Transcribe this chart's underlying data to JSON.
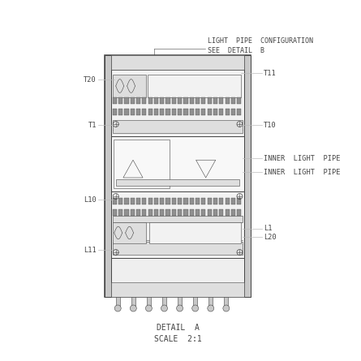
{
  "bg_color": "#ffffff",
  "line_color": "#666666",
  "dark_color": "#444444",
  "med_gray": "#888888",
  "light_gray": "#bbbbbb",
  "fill_light": "#f2f2f2",
  "fill_med": "#dedede",
  "fill_dark": "#c8c8c8",
  "fill_pin": "#909090",
  "title_top": "LIGHT  PIPE  CONFIGURATION",
  "title_top2": "SEE  DETAIL  B",
  "detail_label": "DETAIL  A",
  "scale_label": "SCALE  2:1",
  "ann_fs": 6.2,
  "title_fs": 6.0,
  "detail_fs": 7.0
}
